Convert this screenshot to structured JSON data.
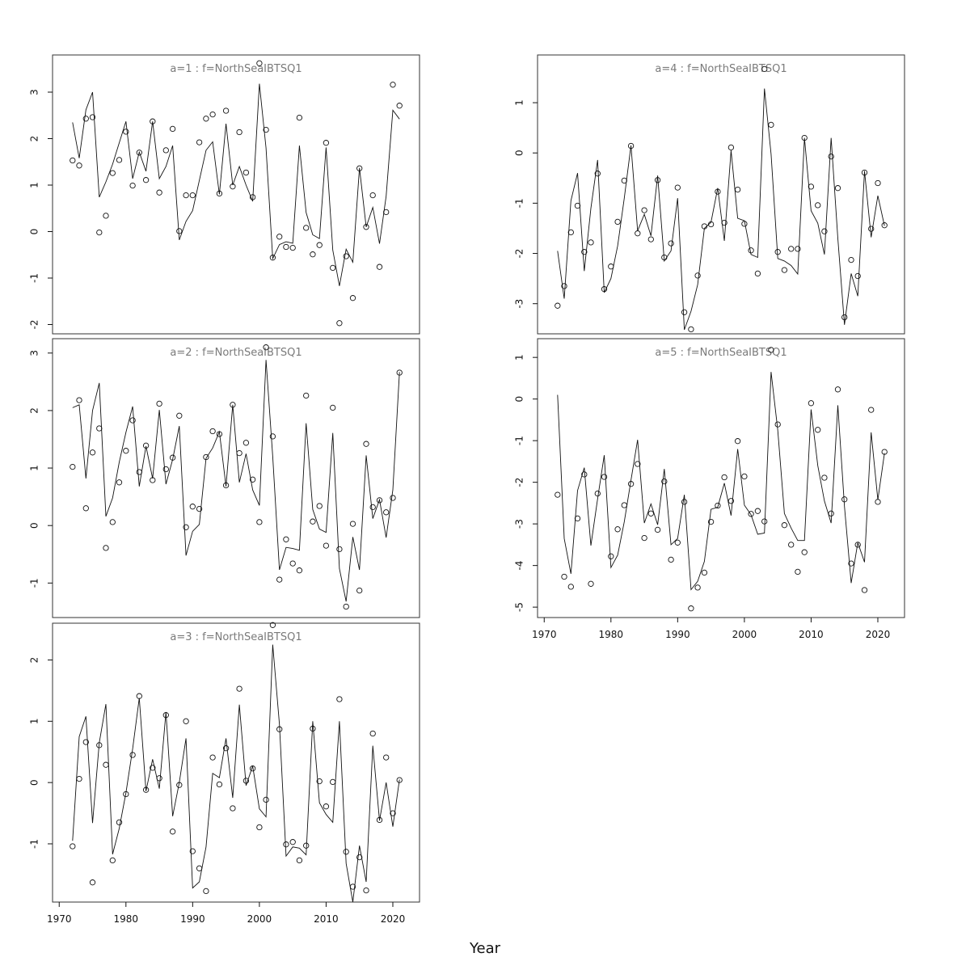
{
  "chart_data": {
    "type": "line+scatter",
    "xlabel": "Year",
    "x_ticks": [
      1970,
      1980,
      1990,
      2000,
      2010,
      2020
    ],
    "colors": {
      "line": "#111111",
      "points": "#111111",
      "title": "#7a7a7a",
      "frame": "#333333"
    },
    "panels": [
      {
        "title": "a=1  :  f=NorthSeaIBTSQ1",
        "ylim": [
          -2.2,
          3.8
        ],
        "y_ticks": [
          -2,
          -1,
          0,
          1,
          2,
          3
        ],
        "x": [
          1972,
          1973,
          1974,
          1975,
          1976,
          1977,
          1978,
          1979,
          1980,
          1981,
          1982,
          1983,
          1984,
          1985,
          1986,
          1987,
          1988,
          1989,
          1990,
          1991,
          1992,
          1993,
          1994,
          1995,
          1996,
          1997,
          1998,
          1999,
          2000,
          2001,
          2002,
          2003,
          2004,
          2005,
          2006,
          2007,
          2008,
          2009,
          2010,
          2011,
          2012,
          2013,
          2014,
          2015,
          2016,
          2017,
          2018,
          2019,
          2020,
          2021
        ],
        "observed": [
          1.53,
          1.42,
          2.43,
          2.46,
          -0.02,
          0.34,
          1.26,
          1.54,
          2.15,
          0.99,
          1.7,
          1.11,
          2.37,
          0.84,
          1.75,
          2.21,
          0.01,
          0.78,
          0.78,
          1.92,
          2.43,
          2.52,
          0.82,
          2.6,
          0.97,
          2.14,
          1.27,
          0.74,
          3.62,
          2.19,
          -0.56,
          -0.11,
          -0.33,
          -0.35,
          2.45,
          0.08,
          -0.49,
          -0.29,
          1.91,
          -0.78,
          -1.97,
          -0.53,
          -1.43,
          1.36,
          0.1,
          0.78,
          -0.76,
          0.42,
          3.16,
          2.71
        ],
        "fitted": [
          2.35,
          1.58,
          2.62,
          3.0,
          0.74,
          1.07,
          1.45,
          1.91,
          2.37,
          1.14,
          1.71,
          1.3,
          2.37,
          1.14,
          1.4,
          1.85,
          -0.18,
          0.22,
          0.45,
          1.1,
          1.75,
          1.93,
          0.8,
          2.32,
          1.0,
          1.4,
          1.0,
          0.65,
          3.18,
          1.8,
          -0.58,
          -0.28,
          -0.22,
          -0.25,
          1.85,
          0.41,
          -0.07,
          -0.15,
          1.81,
          -0.4,
          -1.17,
          -0.38,
          -0.66,
          1.37,
          0.1,
          0.52,
          -0.26,
          0.76,
          2.61,
          2.42
        ]
      },
      {
        "title": "a=2  :  f=NorthSeaIBTSQ1",
        "ylim": [
          -1.6,
          3.25
        ],
        "y_ticks": [
          -1,
          0,
          1,
          2,
          3
        ],
        "x": [
          1972,
          1973,
          1974,
          1975,
          1976,
          1977,
          1978,
          1979,
          1980,
          1981,
          1982,
          1983,
          1984,
          1985,
          1986,
          1987,
          1988,
          1989,
          1990,
          1991,
          1992,
          1993,
          1994,
          1995,
          1996,
          1997,
          1998,
          1999,
          2000,
          2001,
          2002,
          2003,
          2004,
          2005,
          2006,
          2007,
          2008,
          2009,
          2010,
          2011,
          2012,
          2013,
          2014,
          2015,
          2016,
          2017,
          2018,
          2019,
          2020,
          2021
        ],
        "observed": [
          1.02,
          2.18,
          0.3,
          1.27,
          1.69,
          -0.39,
          0.06,
          0.75,
          1.3,
          1.83,
          0.93,
          1.39,
          0.79,
          2.12,
          0.98,
          1.18,
          1.91,
          -0.03,
          0.33,
          0.29,
          1.19,
          1.64,
          1.59,
          0.7,
          2.1,
          1.26,
          1.44,
          0.8,
          0.06,
          3.1,
          1.55,
          -0.94,
          -0.24,
          -0.66,
          -0.78,
          2.26,
          0.07,
          0.34,
          -0.35,
          2.05,
          -0.41,
          -1.41,
          0.03,
          -1.13,
          1.42,
          0.32,
          0.44,
          0.23,
          0.48,
          2.66
        ],
        "fitted": [
          2.05,
          2.1,
          0.82,
          2.0,
          2.48,
          0.16,
          0.48,
          1.1,
          1.62,
          2.07,
          0.68,
          1.38,
          0.82,
          2.01,
          0.72,
          1.15,
          1.73,
          -0.52,
          -0.1,
          0.02,
          1.17,
          1.35,
          1.63,
          0.68,
          2.1,
          0.75,
          1.25,
          0.62,
          0.35,
          2.88,
          1.2,
          -0.77,
          -0.38,
          -0.4,
          -0.43,
          1.78,
          0.28,
          -0.06,
          -0.12,
          1.61,
          -0.75,
          -1.32,
          -0.2,
          -0.77,
          1.22,
          0.12,
          0.45,
          -0.21,
          0.62,
          2.67
        ]
      },
      {
        "title": "a=3  :  f=NorthSeaIBTSQ1",
        "ylim": [
          -1.95,
          2.6
        ],
        "y_ticks": [
          -1,
          0,
          1,
          2
        ],
        "x": [
          1972,
          1973,
          1974,
          1975,
          1976,
          1977,
          1978,
          1979,
          1980,
          1981,
          1982,
          1983,
          1984,
          1985,
          1986,
          1987,
          1988,
          1989,
          1990,
          1991,
          1992,
          1993,
          1994,
          1995,
          1996,
          1997,
          1998,
          1999,
          2000,
          2001,
          2002,
          2003,
          2004,
          2005,
          2006,
          2007,
          2008,
          2009,
          2010,
          2011,
          2012,
          2013,
          2014,
          2015,
          2016,
          2017,
          2018,
          2019,
          2020,
          2021
        ],
        "observed": [
          -1.04,
          0.06,
          0.66,
          -1.63,
          0.61,
          0.29,
          -1.27,
          -0.65,
          -0.19,
          0.45,
          1.41,
          -0.12,
          0.24,
          0.07,
          1.1,
          -0.8,
          -0.04,
          1.0,
          -1.12,
          -1.4,
          -1.77,
          0.41,
          -0.03,
          0.56,
          -0.42,
          1.53,
          0.03,
          0.23,
          -0.73,
          -0.28,
          2.57,
          0.87,
          -1.01,
          -0.97,
          -1.27,
          -1.03,
          0.88,
          0.02,
          -0.39,
          0.01,
          1.36,
          -1.13,
          -1.7,
          -1.22,
          -1.76,
          0.8,
          -0.61,
          0.41,
          -0.5,
          0.04
        ],
        "fitted": [
          -0.95,
          0.75,
          1.08,
          -0.66,
          0.65,
          1.28,
          -1.17,
          -0.75,
          -0.17,
          0.55,
          1.38,
          -0.14,
          0.38,
          -0.1,
          1.15,
          -0.55,
          0.0,
          0.72,
          -1.72,
          -1.62,
          -1.05,
          0.15,
          0.08,
          0.72,
          -0.25,
          1.27,
          -0.05,
          0.27,
          -0.43,
          -0.56,
          2.25,
          0.95,
          -1.2,
          -1.05,
          -1.07,
          -1.18,
          1.0,
          -0.33,
          -0.52,
          -0.65,
          1.0,
          -1.32,
          -1.95,
          -1.03,
          -1.62,
          0.6,
          -0.62,
          0.0,
          -0.72,
          0.05
        ]
      },
      {
        "title": "a=4  :  f=NorthSeaIBTSQ1",
        "ylim": [
          -3.6,
          1.95
        ],
        "y_ticks": [
          -3,
          -2,
          -1,
          0,
          1
        ],
        "x": [
          1972,
          1973,
          1974,
          1975,
          1976,
          1977,
          1978,
          1979,
          1980,
          1981,
          1982,
          1983,
          1984,
          1985,
          1986,
          1987,
          1988,
          1989,
          1990,
          1991,
          1992,
          1993,
          1994,
          1995,
          1996,
          1997,
          1998,
          1999,
          2000,
          2001,
          2002,
          2003,
          2004,
          2005,
          2006,
          2007,
          2008,
          2009,
          2010,
          2011,
          2012,
          2013,
          2014,
          2015,
          2016,
          2017,
          2018,
          2019,
          2020,
          2021
        ],
        "observed": [
          -3.04,
          -2.65,
          -1.58,
          -1.05,
          -1.97,
          -1.78,
          -0.41,
          -2.71,
          -2.26,
          -1.37,
          -0.55,
          0.14,
          -1.6,
          -1.14,
          -1.72,
          -0.54,
          -2.08,
          -1.8,
          -0.69,
          -3.17,
          -3.51,
          -2.44,
          -1.46,
          -1.42,
          -0.77,
          -1.39,
          0.11,
          -0.73,
          -1.41,
          -1.94,
          -2.4,
          1.67,
          0.56,
          -1.97,
          -2.33,
          -1.91,
          -1.91,
          0.3,
          -0.67,
          -1.04,
          -1.56,
          -0.07,
          -0.7,
          -3.27,
          -2.13,
          -2.45,
          -0.39,
          -1.51,
          -0.6,
          -1.44
        ],
        "fitted": [
          -1.95,
          -2.9,
          -0.95,
          -0.4,
          -2.35,
          -1.1,
          -0.14,
          -2.78,
          -2.5,
          -1.85,
          -0.9,
          0.15,
          -1.55,
          -1.22,
          -1.65,
          -0.45,
          -2.15,
          -1.95,
          -0.9,
          -3.52,
          -3.15,
          -2.62,
          -1.5,
          -1.38,
          -0.7,
          -1.75,
          0.05,
          -1.3,
          -1.35,
          -2.02,
          -2.08,
          1.28,
          -0.02,
          -2.1,
          -2.15,
          -2.24,
          -2.41,
          0.3,
          -1.15,
          -1.4,
          -2.02,
          0.3,
          -1.7,
          -3.42,
          -2.4,
          -2.85,
          -0.36,
          -1.68,
          -0.85,
          -1.45
        ]
      },
      {
        "title": "a=5  :  f=NorthSeaIBTSQ1",
        "ylim": [
          -5.25,
          1.45
        ],
        "y_ticks": [
          -5,
          -4,
          -3,
          -2,
          -1,
          0,
          1
        ],
        "x": [
          1972,
          1973,
          1974,
          1975,
          1976,
          1977,
          1978,
          1979,
          1980,
          1981,
          1982,
          1983,
          1984,
          1985,
          1986,
          1987,
          1988,
          1989,
          1990,
          1991,
          1992,
          1993,
          1994,
          1995,
          1996,
          1997,
          1998,
          1999,
          2000,
          2001,
          2002,
          2003,
          2004,
          2005,
          2006,
          2007,
          2008,
          2009,
          2010,
          2011,
          2012,
          2013,
          2014,
          2015,
          2016,
          2017,
          2018,
          2019,
          2020,
          2021
        ],
        "observed": [
          -2.3,
          -4.27,
          -4.51,
          -2.87,
          -1.81,
          -4.44,
          -2.27,
          -1.87,
          -3.78,
          -3.13,
          -2.55,
          -2.04,
          -1.56,
          -3.34,
          -2.75,
          -3.14,
          -1.98,
          -3.86,
          -3.45,
          -2.47,
          -5.03,
          -4.53,
          -4.17,
          -2.95,
          -2.56,
          -1.88,
          -2.45,
          -1.01,
          -1.86,
          -2.76,
          -2.69,
          -2.94,
          1.18,
          -0.61,
          -3.03,
          -3.5,
          -4.15,
          -3.68,
          -0.1,
          -0.74,
          -1.89,
          -2.75,
          0.23,
          -2.41,
          -3.95,
          -3.5,
          -4.59,
          -0.26,
          -2.47,
          -1.27
        ],
        "fitted": [
          0.1,
          -3.35,
          -4.2,
          -2.2,
          -1.65,
          -3.52,
          -2.4,
          -1.35,
          -4.05,
          -3.75,
          -2.95,
          -1.95,
          -0.98,
          -2.98,
          -2.52,
          -3.02,
          -1.68,
          -3.5,
          -3.35,
          -2.3,
          -4.58,
          -4.38,
          -3.9,
          -2.65,
          -2.6,
          -2.02,
          -2.8,
          -1.2,
          -2.55,
          -2.78,
          -3.25,
          -3.22,
          0.65,
          -0.75,
          -2.75,
          -3.1,
          -3.4,
          -3.4,
          -0.25,
          -1.6,
          -2.45,
          -2.98,
          -0.15,
          -2.58,
          -4.42,
          -3.45,
          -3.92,
          -0.8,
          -2.42,
          -1.3
        ]
      }
    ]
  }
}
